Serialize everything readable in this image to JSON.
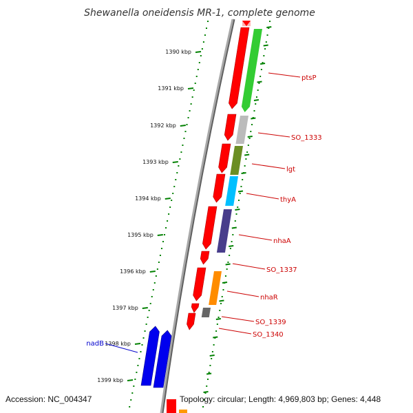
{
  "title": "Shewanella oneidensis MR-1, complete genome",
  "footer": {
    "accession": "Accession: NC_004347",
    "topology": "Topology: circular; Length: 4,969,803 bp; Genes: 4,448"
  },
  "scale_labels": [
    "1390 kbp",
    "1391 kbp",
    "1392 kbp",
    "1393 kbp",
    "1394 kbp",
    "1395 kbp",
    "1396 kbp",
    "1397 kbp",
    "1398 kbp",
    "1399 kbp"
  ],
  "gene_labels": [
    {
      "text": "ptsP",
      "strand": "forward"
    },
    {
      "text": "SO_1333",
      "strand": "forward"
    },
    {
      "text": "lgt",
      "strand": "forward"
    },
    {
      "text": "thyA",
      "strand": "forward"
    },
    {
      "text": "nhaA",
      "strand": "forward"
    },
    {
      "text": "SO_1337",
      "strand": "forward"
    },
    {
      "text": "nhaR",
      "strand": "forward"
    },
    {
      "text": "SO_1339",
      "strand": "forward"
    },
    {
      "text": "SO_1340",
      "strand": "forward"
    },
    {
      "text": "nadB",
      "strand": "reverse"
    }
  ],
  "colors": {
    "cds": "#ff0000",
    "forward_label": "#cc0000",
    "reverse_label": "#0000cc",
    "ticks": "#008000",
    "backbone": "#888888",
    "ptsP": "#33cc33",
    "SO_1333": "#bbbbbb",
    "lgt": "#6b8e23",
    "thyA": "#00bfff",
    "nhaA": "#483d8b",
    "nhaR": "#ff8c00",
    "SO_1339": "#666666",
    "nadB": "#0000ee",
    "partial": "#ff9900"
  }
}
